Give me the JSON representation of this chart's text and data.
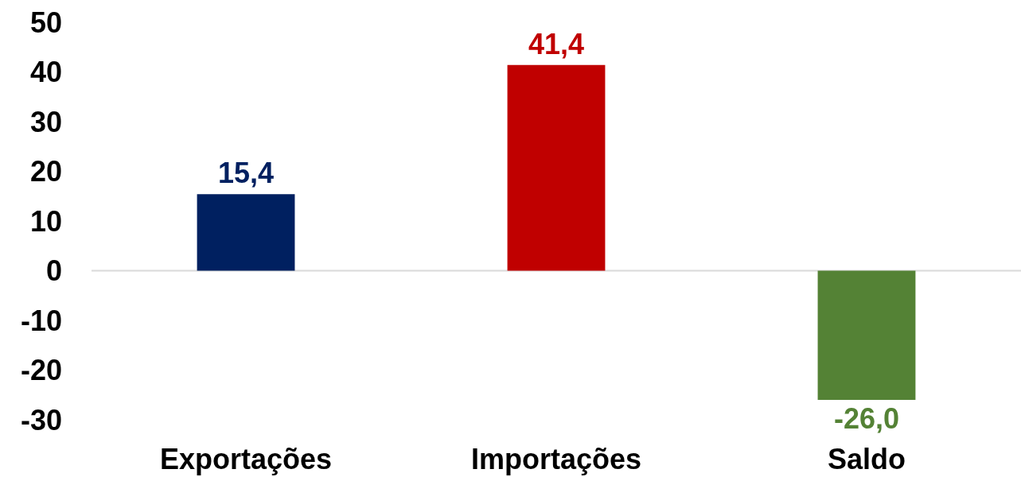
{
  "chart_data": {
    "type": "bar",
    "categories": [
      "Exportações",
      "Importações",
      "Saldo"
    ],
    "values": [
      15.4,
      41.4,
      -26.0
    ],
    "colors": [
      "#002060",
      "#c00000",
      "#548235"
    ],
    "value_labels": [
      "15,4",
      "41,4",
      "-26,0"
    ],
    "ylim": [
      -30,
      50
    ],
    "yticks": [
      -30,
      -20,
      -10,
      0,
      10,
      20,
      30,
      40,
      50
    ],
    "grid": false,
    "ref_lines": [
      {
        "axis": "y",
        "value": 0,
        "color": "#d9d9d9"
      }
    ]
  }
}
